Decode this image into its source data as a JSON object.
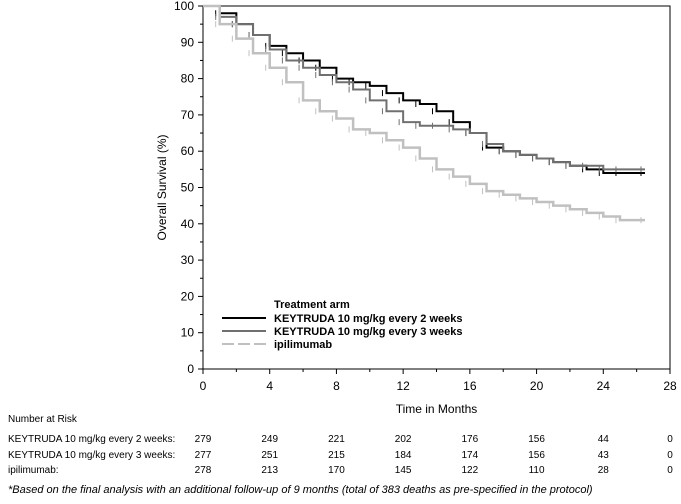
{
  "chart_data": {
    "type": "line",
    "xlabel": "Time in Months",
    "ylabel": "Overall Survival (%)",
    "xlim": [
      0,
      28
    ],
    "ylim": [
      0,
      100
    ],
    "xticks": [
      0,
      4,
      8,
      12,
      16,
      20,
      24,
      28
    ],
    "yticks": [
      0,
      10,
      20,
      30,
      40,
      50,
      60,
      70,
      80,
      90,
      100
    ],
    "grid": false,
    "legend": {
      "title": "Treatment arm",
      "placement": "bottom-left"
    },
    "series": [
      {
        "name": "KEYTRUDA 10 mg/kg every 2 weeks",
        "color": "#000000",
        "dash": "solid",
        "x": [
          0,
          1,
          2,
          3,
          4,
          5,
          6,
          7,
          8,
          9,
          10,
          11,
          12,
          13,
          14,
          15,
          16,
          17,
          18,
          19,
          20,
          21,
          22,
          23,
          24,
          25,
          26.5
        ],
        "y": [
          100,
          98,
          95,
          92,
          89,
          87,
          85,
          83,
          80,
          79,
          78,
          76,
          74,
          73,
          71,
          68,
          65,
          61,
          60,
          59,
          58,
          57,
          56,
          55,
          54,
          54,
          54
        ]
      },
      {
        "name": "KEYTRUDA 10 mg/kg every 3 weeks",
        "color": "#707070",
        "dash": "solid",
        "x": [
          0,
          1,
          2,
          3,
          4,
          5,
          6,
          7,
          8,
          9,
          10,
          11,
          12,
          13,
          14,
          15,
          16,
          17,
          18,
          19,
          20,
          21,
          22,
          23,
          24,
          25,
          26.5
        ],
        "y": [
          100,
          97,
          95,
          92,
          88,
          85,
          83,
          81,
          79,
          77,
          74,
          71,
          68,
          67,
          67,
          66,
          65,
          62,
          60,
          59,
          58,
          57,
          56,
          56,
          55,
          55,
          55
        ]
      },
      {
        "name": "ipilimumab",
        "color": "#c0c0c0",
        "dash": "dashed",
        "x": [
          0,
          1,
          2,
          3,
          4,
          5,
          6,
          7,
          8,
          9,
          10,
          11,
          12,
          13,
          14,
          15,
          16,
          17,
          18,
          19,
          20,
          21,
          22,
          23,
          24,
          25,
          26.5
        ],
        "y": [
          100,
          95,
          91,
          87,
          83,
          79,
          74,
          71,
          69,
          66,
          65,
          63,
          61,
          58,
          55,
          53,
          51,
          49,
          48,
          47,
          46,
          45,
          44,
          43,
          42,
          41,
          41
        ]
      }
    ]
  },
  "risk_table": {
    "title": "Number at Risk",
    "times": [
      0,
      4,
      8,
      12,
      16,
      20,
      24,
      28
    ],
    "rows": [
      {
        "label": "KEYTRUDA 10 mg/kg every 2 weeks:",
        "values": [
          "279",
          "249",
          "221",
          "202",
          "176",
          "156",
          "44",
          "0"
        ]
      },
      {
        "label": "KEYTRUDA 10 mg/kg every 3 weeks:",
        "values": [
          "277",
          "251",
          "215",
          "184",
          "174",
          "156",
          "43",
          "0"
        ]
      },
      {
        "label": "ipilimumab:",
        "values": [
          "278",
          "213",
          "170",
          "145",
          "122",
          "110",
          "28",
          "0"
        ]
      }
    ]
  },
  "footnote": "*Based on the final analysis with an additional follow-up of 9 months (total of 383 deaths as pre-specified in the protocol)"
}
